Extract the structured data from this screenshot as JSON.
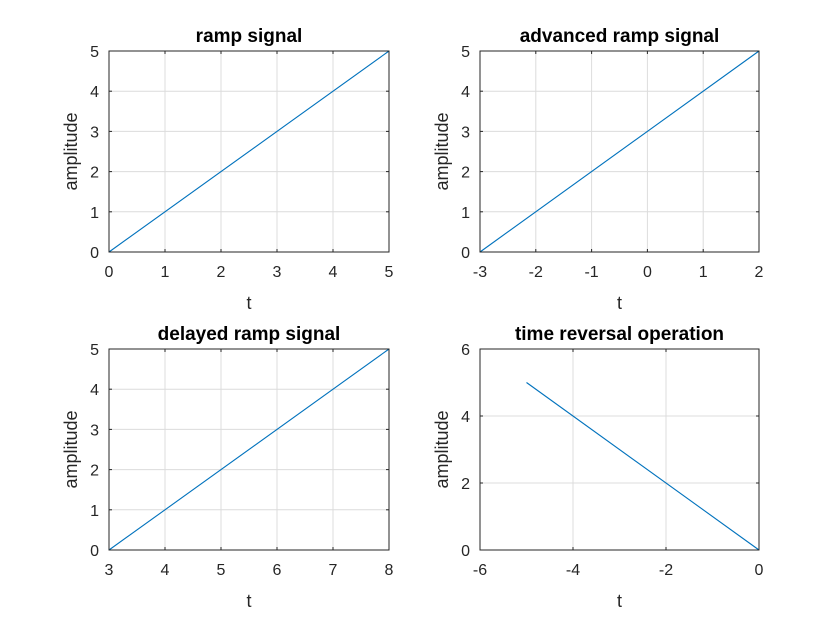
{
  "chart_data": [
    {
      "type": "line",
      "title": "ramp signal",
      "xlabel": "t",
      "ylabel": "amplitude",
      "xlim": [
        0,
        5
      ],
      "ylim": [
        0,
        5
      ],
      "xticks": [
        0,
        1,
        2,
        3,
        4,
        5
      ],
      "yticks": [
        0,
        1,
        2,
        3,
        4,
        5
      ],
      "grid": true,
      "series": [
        {
          "x": [
            0,
            5
          ],
          "y": [
            0,
            5
          ]
        }
      ]
    },
    {
      "type": "line",
      "title": "advanced ramp signal",
      "xlabel": "t",
      "ylabel": "amplitude",
      "xlim": [
        -3,
        2
      ],
      "ylim": [
        0,
        5
      ],
      "xticks": [
        -3,
        -2,
        -1,
        0,
        1,
        2
      ],
      "yticks": [
        0,
        1,
        2,
        3,
        4,
        5
      ],
      "grid": true,
      "series": [
        {
          "x": [
            -3,
            2
          ],
          "y": [
            0,
            5
          ]
        }
      ]
    },
    {
      "type": "line",
      "title": "delayed ramp signal",
      "xlabel": "t",
      "ylabel": "amplitude",
      "xlim": [
        3,
        8
      ],
      "ylim": [
        0,
        5
      ],
      "xticks": [
        3,
        4,
        5,
        6,
        7,
        8
      ],
      "yticks": [
        0,
        1,
        2,
        3,
        4,
        5
      ],
      "grid": true,
      "series": [
        {
          "x": [
            3,
            8
          ],
          "y": [
            0,
            5
          ]
        }
      ]
    },
    {
      "type": "line",
      "title": "time reversal operation",
      "xlabel": "t",
      "ylabel": "amplitude",
      "xlim": [
        -6,
        0
      ],
      "ylim": [
        0,
        6
      ],
      "xticks": [
        -6,
        -4,
        -2,
        0
      ],
      "yticks": [
        0,
        2,
        4,
        6
      ],
      "grid": true,
      "series": [
        {
          "x": [
            -5,
            0
          ],
          "y": [
            5,
            0
          ]
        }
      ]
    }
  ],
  "colors": {
    "line": "#0072bd",
    "grid": "#dcdcdc",
    "axis": "#262626"
  }
}
